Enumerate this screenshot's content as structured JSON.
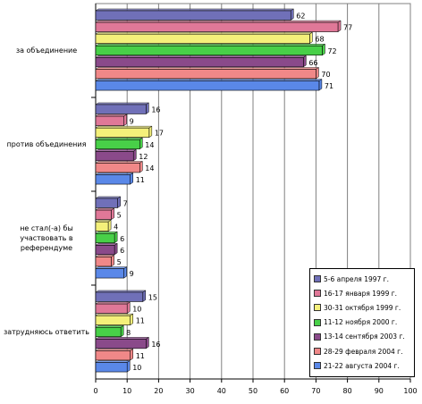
{
  "chart_data": {
    "type": "bar",
    "orientation": "horizontal",
    "categories": [
      "за объединение",
      "против объединения",
      "не стал(-а) бы участвовать в референдуме",
      "затрудняюсь ответить"
    ],
    "category_lines": [
      [
        "за объединение"
      ],
      [
        "против объединения"
      ],
      [
        "не стал(-а) бы",
        "участвовать в",
        "референдуме"
      ],
      [
        "затрудняюсь ответить"
      ]
    ],
    "series": [
      {
        "name": "5-6 апреля 1997 г.",
        "color": "#7070b8",
        "values": [
          62,
          16,
          7,
          15
        ]
      },
      {
        "name": "16-17 января 1999 г.",
        "color": "#e07898",
        "values": [
          77,
          9,
          5,
          10
        ]
      },
      {
        "name": "30-31 октября 1999 г.",
        "color": "#f4f07a",
        "values": [
          68,
          17,
          4,
          11
        ]
      },
      {
        "name": "11-12 ноября 2000 г.",
        "color": "#48d048",
        "values": [
          72,
          14,
          6,
          8
        ]
      },
      {
        "name": "13-14 сентября 2003 г.",
        "color": "#8a4a8a",
        "values": [
          66,
          12,
          6,
          16
        ]
      },
      {
        "name": "28-29 февраля 2004 г.",
        "color": "#f08888",
        "values": [
          70,
          14,
          5,
          11
        ]
      },
      {
        "name": "21-22 августа 2004 г.",
        "color": "#5a88e8",
        "values": [
          71,
          11,
          9,
          10
        ]
      }
    ],
    "xlim": [
      0,
      100
    ],
    "xticks": [
      0,
      10,
      20,
      30,
      40,
      50,
      60,
      70,
      80,
      90,
      100
    ],
    "grid": true,
    "legend_position": "bottom-right"
  }
}
